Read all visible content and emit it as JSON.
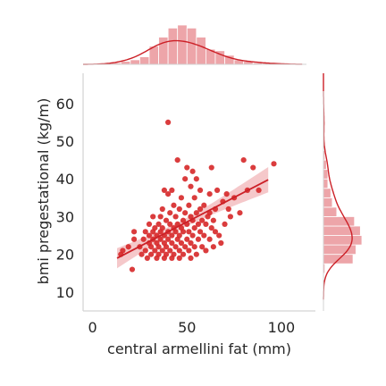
{
  "chart_data": {
    "type": "scatter",
    "subtype": "jointplot-regression",
    "xlabel": "central armellini fat (mm)",
    "ylabel": "bmi pregestational (kg/m)",
    "xlim": [
      -5,
      118
    ],
    "ylim": [
      5,
      68
    ],
    "xticks": [
      0,
      50,
      100
    ],
    "yticks": [
      10,
      20,
      30,
      40,
      50,
      60
    ],
    "grid": false,
    "colors": {
      "points": "#d62728",
      "line": "#cc2027",
      "ci_band": "#f2b6b8",
      "hist_fill": "#eda5a9",
      "hist_edge": "#ffffff",
      "axis": "#d3d3d3",
      "text": "#262626"
    },
    "regression": {
      "x_range": [
        13,
        93
      ],
      "intercept": 15.6,
      "slope": 0.26,
      "ci": 95
    },
    "points": [
      [
        15,
        20
      ],
      [
        16,
        21
      ],
      [
        19,
        22
      ],
      [
        21,
        16
      ],
      [
        22,
        24
      ],
      [
        22,
        26
      ],
      [
        25,
        22
      ],
      [
        26,
        20
      ],
      [
        27,
        24
      ],
      [
        28,
        21
      ],
      [
        28,
        26
      ],
      [
        29,
        19
      ],
      [
        30,
        23
      ],
      [
        30,
        25
      ],
      [
        30,
        28
      ],
      [
        31,
        20
      ],
      [
        31,
        22
      ],
      [
        32,
        24
      ],
      [
        32,
        26
      ],
      [
        32,
        30
      ],
      [
        33,
        21
      ],
      [
        33,
        27
      ],
      [
        34,
        19
      ],
      [
        34,
        23
      ],
      [
        34,
        25
      ],
      [
        35,
        20
      ],
      [
        35,
        22
      ],
      [
        35,
        28
      ],
      [
        36,
        24
      ],
      [
        36,
        26
      ],
      [
        36,
        30
      ],
      [
        37,
        21
      ],
      [
        37,
        27
      ],
      [
        37,
        32
      ],
      [
        38,
        19
      ],
      [
        38,
        23
      ],
      [
        38,
        25
      ],
      [
        38,
        37
      ],
      [
        39,
        20
      ],
      [
        39,
        22
      ],
      [
        39,
        29
      ],
      [
        40,
        24
      ],
      [
        40,
        26
      ],
      [
        40,
        36
      ],
      [
        40,
        55
      ],
      [
        41,
        21
      ],
      [
        41,
        28
      ],
      [
        41,
        31
      ],
      [
        42,
        19
      ],
      [
        42,
        23
      ],
      [
        42,
        25
      ],
      [
        42,
        37
      ],
      [
        43,
        20
      ],
      [
        43,
        27
      ],
      [
        43,
        33
      ],
      [
        44,
        22
      ],
      [
        44,
        26
      ],
      [
        44,
        30
      ],
      [
        45,
        24
      ],
      [
        45,
        28
      ],
      [
        45,
        45
      ],
      [
        46,
        19
      ],
      [
        46,
        21
      ],
      [
        46,
        25
      ],
      [
        46,
        32
      ],
      [
        47,
        23
      ],
      [
        47,
        27
      ],
      [
        47,
        35
      ],
      [
        48,
        20
      ],
      [
        48,
        26
      ],
      [
        48,
        29
      ],
      [
        49,
        22
      ],
      [
        49,
        31
      ],
      [
        49,
        40
      ],
      [
        50,
        24
      ],
      [
        50,
        28
      ],
      [
        50,
        43
      ],
      [
        51,
        21
      ],
      [
        51,
        26
      ],
      [
        51,
        33
      ],
      [
        52,
        19
      ],
      [
        52,
        23
      ],
      [
        52,
        30
      ],
      [
        52,
        38
      ],
      [
        53,
        25
      ],
      [
        53,
        29
      ],
      [
        53,
        42
      ],
      [
        54,
        22
      ],
      [
        54,
        27
      ],
      [
        54,
        35
      ],
      [
        55,
        20
      ],
      [
        55,
        31
      ],
      [
        55,
        40
      ],
      [
        56,
        24
      ],
      [
        56,
        28
      ],
      [
        57,
        26
      ],
      [
        57,
        32
      ],
      [
        57,
        37
      ],
      [
        58,
        22
      ],
      [
        58,
        29
      ],
      [
        59,
        25
      ],
      [
        59,
        33
      ],
      [
        60,
        21
      ],
      [
        60,
        28
      ],
      [
        61,
        30
      ],
      [
        62,
        24
      ],
      [
        62,
        31
      ],
      [
        62,
        36
      ],
      [
        63,
        27
      ],
      [
        63,
        43
      ],
      [
        64,
        22
      ],
      [
        64,
        29
      ],
      [
        65,
        26
      ],
      [
        65,
        32
      ],
      [
        66,
        37
      ],
      [
        67,
        25
      ],
      [
        68,
        23
      ],
      [
        69,
        34
      ],
      [
        70,
        28
      ],
      [
        71,
        36
      ],
      [
        72,
        32
      ],
      [
        73,
        30
      ],
      [
        75,
        35
      ],
      [
        78,
        31
      ],
      [
        80,
        45
      ],
      [
        82,
        37
      ],
      [
        85,
        43
      ],
      [
        88,
        37
      ],
      [
        96,
        44
      ]
    ],
    "hist_x": {
      "bin_edges": [
        5,
        10,
        15,
        20,
        25,
        30,
        35,
        40,
        45,
        50,
        55,
        60,
        65,
        70,
        75,
        80,
        85,
        90,
        95,
        100
      ],
      "counts": [
        0,
        1,
        2,
        3,
        5,
        12,
        18,
        24,
        26,
        24,
        18,
        10,
        9,
        6,
        3,
        2,
        1,
        1,
        1
      ]
    },
    "hist_y": {
      "bin_edges": [
        15,
        17.5,
        20,
        22.5,
        25,
        27.5,
        30,
        32.5,
        35,
        37.5,
        40,
        42.5,
        45,
        47.5,
        50,
        52.5,
        55
      ],
      "counts": [
        1,
        20,
        22,
        26,
        25,
        21,
        9,
        6,
        5,
        3,
        3,
        2,
        1,
        0,
        0,
        0
      ]
    }
  }
}
